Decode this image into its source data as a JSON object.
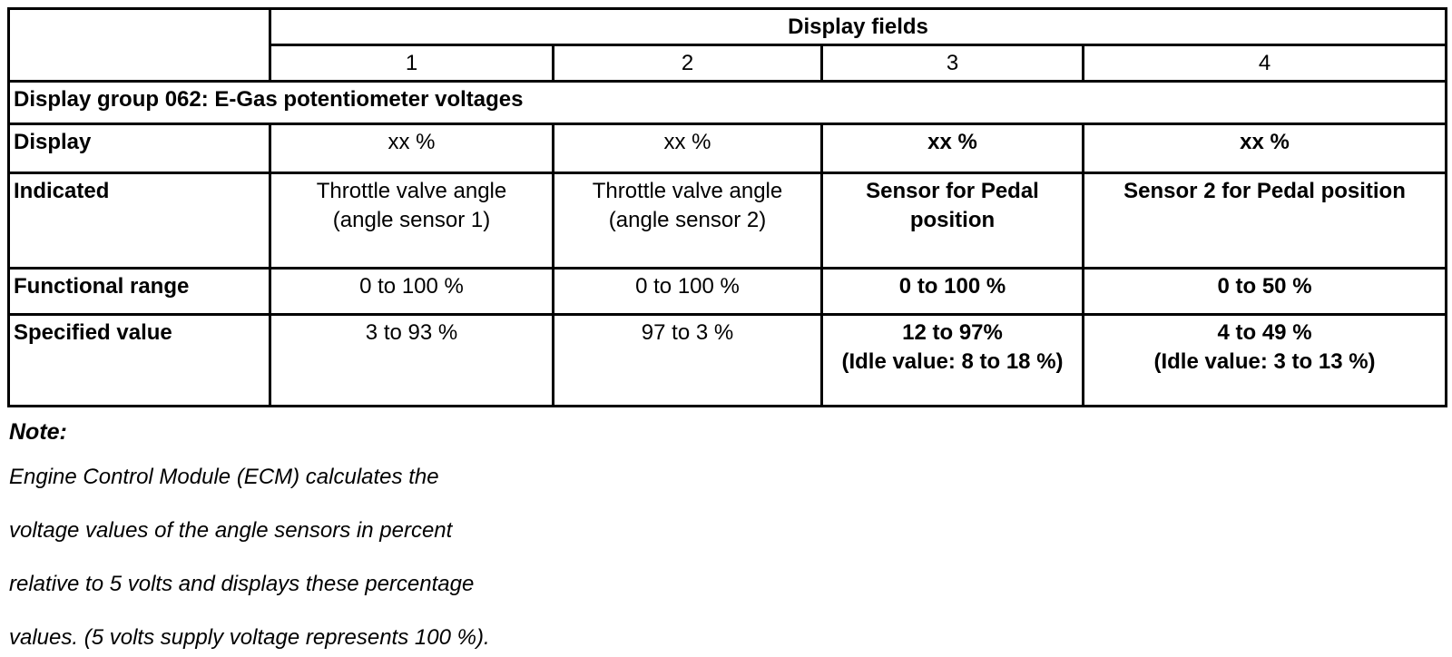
{
  "table": {
    "display_fields_label": "Display fields",
    "field_numbers": [
      "1",
      "2",
      "3",
      "4"
    ],
    "group_title": "Display group 062: E-Gas potentiometer voltages",
    "rows": [
      {
        "label": "Display",
        "cells": [
          "xx %",
          "xx %",
          "xx %",
          "xx %"
        ]
      },
      {
        "label": "Indicated",
        "cells": [
          "Throttle valve angle\n(angle sensor 1)",
          "Throttle valve angle\n(angle sensor 2)",
          "Sensor for Pedal\nposition",
          "Sensor 2 for Pedal position"
        ]
      },
      {
        "label": "Functional range",
        "cells": [
          "0 to 100 %",
          "0 to 100 %",
          "0 to 100 %",
          "0 to 50 %"
        ]
      },
      {
        "label": "Specified value",
        "cells": [
          "3 to 93 %",
          "97 to 3 %",
          "12 to 97%\n(Idle value: 8 to 18 %)",
          "4 to 49 %\n(Idle value: 3 to 13 %)"
        ]
      }
    ]
  },
  "note": {
    "title": "Note:",
    "lines": [
      "Engine Control Module (ECM) calculates the",
      "voltage values of the angle sensors in percent",
      "relative to 5 volts and displays these percentage",
      "values. (5 volts supply voltage represents 100 %)."
    ]
  },
  "colors": {
    "ink": "#000000",
    "paper": "#ffffff"
  }
}
